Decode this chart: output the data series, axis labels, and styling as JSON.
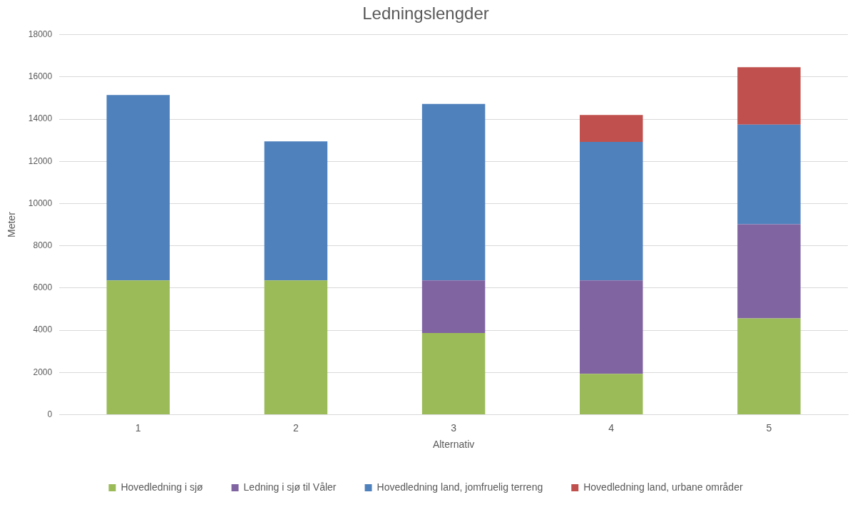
{
  "chart_data": {
    "type": "bar",
    "title": "Ledningslengder",
    "xlabel": "Alternativ",
    "ylabel": "Meter",
    "categories": [
      "1",
      "2",
      "3",
      "4",
      "5"
    ],
    "stacked": true,
    "series": [
      {
        "name": "Hovedledning i sjø",
        "color": "#9bbb59",
        "values": [
          6360,
          6360,
          3870,
          1930,
          4560
        ]
      },
      {
        "name": "Ledning i sjø til Våler",
        "color": "#8064a2",
        "values": [
          null,
          null,
          2490,
          4430,
          4460
        ]
      },
      {
        "name": "Hovedledning land, jomfruelig terreng",
        "color": "#4f81bd",
        "values": [
          8790,
          6590,
          8360,
          6560,
          4720
        ]
      },
      {
        "name": "Hovedledning land, urbane områder",
        "color": "#c0504d",
        "values": [
          null,
          null,
          null,
          1280,
          2720
        ]
      }
    ],
    "ylim": [
      0,
      18000
    ],
    "yticks": [
      0,
      2000,
      4000,
      6000,
      8000,
      10000,
      12000,
      14000,
      16000,
      18000
    ],
    "grid": "y",
    "legend": "bottom"
  }
}
